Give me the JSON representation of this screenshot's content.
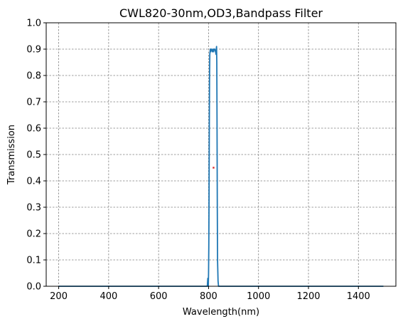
{
  "chart_data": {
    "type": "line",
    "title": "CWL820-30nm,OD3,Bandpass Filter",
    "xlabel": "Wavelength(nm)",
    "ylabel": "Transmission",
    "xlim": [
      150,
      1550
    ],
    "ylim": [
      0,
      1.0
    ],
    "xticks": [
      200,
      400,
      600,
      800,
      1000,
      1200,
      1400
    ],
    "yticks": [
      0.0,
      0.1,
      0.2,
      0.3,
      0.4,
      0.5,
      0.6,
      0.7,
      0.8,
      0.9,
      1.0
    ],
    "xtick_labels": [
      "200",
      "400",
      "600",
      "800",
      "1000",
      "1200",
      "1400"
    ],
    "ytick_labels": [
      "0.0",
      "0.1",
      "0.2",
      "0.3",
      "0.4",
      "0.5",
      "0.6",
      "0.7",
      "0.8",
      "0.9",
      "1.0"
    ],
    "grid": true,
    "series": [
      {
        "color": "#1f77b4",
        "x": [
          200,
          300,
          400,
          500,
          600,
          700,
          780,
          795,
          797,
          798,
          799,
          800,
          801,
          802,
          803,
          804,
          805,
          806,
          807,
          808,
          810,
          812,
          815,
          818,
          820,
          822,
          825,
          828,
          830,
          831,
          832,
          833,
          834,
          835,
          836,
          838,
          840,
          850,
          900,
          1000,
          1100,
          1200,
          1300,
          1400,
          1500
        ],
        "y": [
          0.0,
          0.0,
          0.0,
          0.0,
          0.0,
          0.0,
          0.0,
          0.0,
          0.03,
          0.0,
          0.0,
          0.05,
          0.15,
          0.35,
          0.6,
          0.8,
          0.88,
          0.89,
          0.9,
          0.89,
          0.9,
          0.9,
          0.89,
          0.9,
          0.89,
          0.9,
          0.9,
          0.89,
          0.88,
          0.9,
          0.91,
          0.85,
          0.6,
          0.3,
          0.1,
          0.02,
          0.0,
          0.0,
          0.0,
          0.0,
          0.0,
          0.0,
          0.0,
          0.0,
          0.0
        ]
      }
    ],
    "marker_points": [
      {
        "x": 820,
        "y": 0.45,
        "color": "#d62728"
      }
    ]
  }
}
